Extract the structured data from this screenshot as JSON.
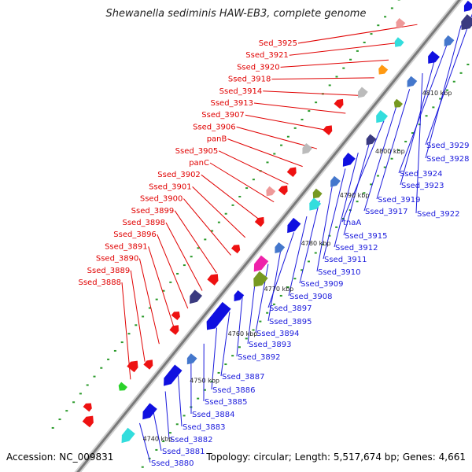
{
  "title": "Shewanella sediminis HAW-EB3, complete genome",
  "footer": {
    "accession": "Accession: NC_009831",
    "summary": "Topology: circular; Length: 5,517,674 bp; Genes: 4,661"
  },
  "scale_labels": [
    "4740 kbp",
    "4750 kbp",
    "4760 kbp",
    "4770 kbp",
    "4780 kbp",
    "4790 kbp",
    "4800 kbp",
    "4810 kbp"
  ],
  "forward_labels": [
    "Sed_3925",
    "Ssed_3921",
    "Ssed_3920",
    "Ssed_3918",
    "Ssed_3914",
    "Ssed_3913",
    "Ssed_3907",
    "Ssed_3906",
    "panB",
    "Ssed_3905",
    "panC",
    "Ssed_3902",
    "Ssed_3901",
    "Ssed_3900",
    "Ssed_3899",
    "Ssed_3898",
    "Ssed_3896",
    "Ssed_3891",
    "Ssed_3890",
    "Ssed_3889",
    "Ssed_3888"
  ],
  "reverse_labels": [
    "Ssed_3929",
    "Ssed_3928",
    "Ssed_3924",
    "Ssed_3923",
    "Ssed_3922",
    "Ssed_3919",
    "Ssed_3917",
    "tnaA",
    "Ssed_3915",
    "Ssed_3912",
    "Ssed_3911",
    "Ssed_3910",
    "Ssed_3909",
    "Ssed_3908",
    "Ssed_3897",
    "Ssed_3895",
    "Ssed_3894",
    "Ssed_3893",
    "Ssed_3892",
    "Ssed_3887",
    "Ssed_3886",
    "Ssed_3885",
    "Ssed_3884",
    "Ssed_3883",
    "Ssed_3882",
    "Ssed_3881",
    "Ssed_3880"
  ],
  "colors": {
    "forward_label": "#e00000",
    "reverse_label": "#1a1adc",
    "backbone": "#777777",
    "tick": "#2a9a2a",
    "gene_blue": "#1010e0",
    "gene_red": "#ee1111"
  }
}
